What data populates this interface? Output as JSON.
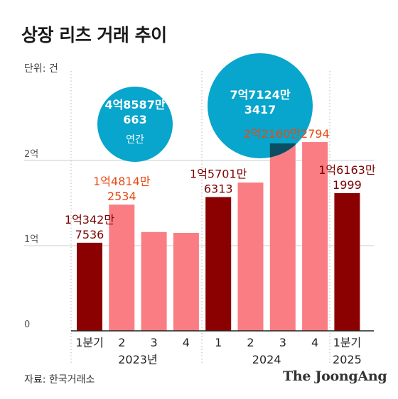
{
  "title": "상장 리츠 거래 추이",
  "unit": "단위: 건",
  "source": "자료: 한국거래소",
  "brand": "The JoongAng",
  "colors": {
    "dark_bar": "#8b0000",
    "light_bar": "#f97d83",
    "bubble": "#08a5cc",
    "bubble_overlap": "#0b4d63",
    "label_dark": "#7a0000",
    "label_light": "#e84a14",
    "grid": "#cccccc",
    "axis": "#222222",
    "axis_label": "#555555"
  },
  "chart_data": {
    "type": "bar",
    "title": "상장 리츠 거래 추이",
    "ylabel": "단위: 건",
    "ylim": [
      0,
      250000000
    ],
    "yticks": [
      {
        "value": 0,
        "label": "0"
      },
      {
        "value": 100000000,
        "label": "1억"
      },
      {
        "value": 200000000,
        "label": "2억"
      }
    ],
    "grid": true,
    "categories": [
      "1분기",
      "2",
      "3",
      "4",
      "1",
      "2",
      "3",
      "4",
      "1분기"
    ],
    "year_labels": [
      "2023년",
      "2024",
      "2025"
    ],
    "values": [
      103427536,
      148142534,
      116000000,
      115000000,
      157016313,
      174000000,
      220000000,
      221602794,
      161631999
    ],
    "bar_tone": [
      "dark",
      "light",
      "light",
      "light",
      "dark",
      "light",
      "light",
      "light",
      "dark"
    ],
    "data_labels": [
      {
        "index": 0,
        "lines": [
          "1억342만",
          "7536"
        ],
        "tone": "dark"
      },
      {
        "index": 1,
        "lines": [
          "1억4814만",
          "2534"
        ],
        "tone": "light"
      },
      {
        "index": 4,
        "lines": [
          "1억5701만",
          "6313"
        ],
        "tone": "dark"
      },
      {
        "index": 7,
        "lines": [
          "2억2160만2794"
        ],
        "tone": "light"
      },
      {
        "index": 8,
        "lines": [
          "1억6163만",
          "1999"
        ],
        "tone": "dark"
      }
    ],
    "annual_totals": [
      {
        "year": "2023",
        "lines": [
          "4억8587만",
          "663"
        ],
        "caption": "연간",
        "value": 485870663
      },
      {
        "year": "2024",
        "lines": [
          "7억7124만",
          "3417"
        ],
        "caption": "",
        "value": 771243417
      }
    ]
  }
}
